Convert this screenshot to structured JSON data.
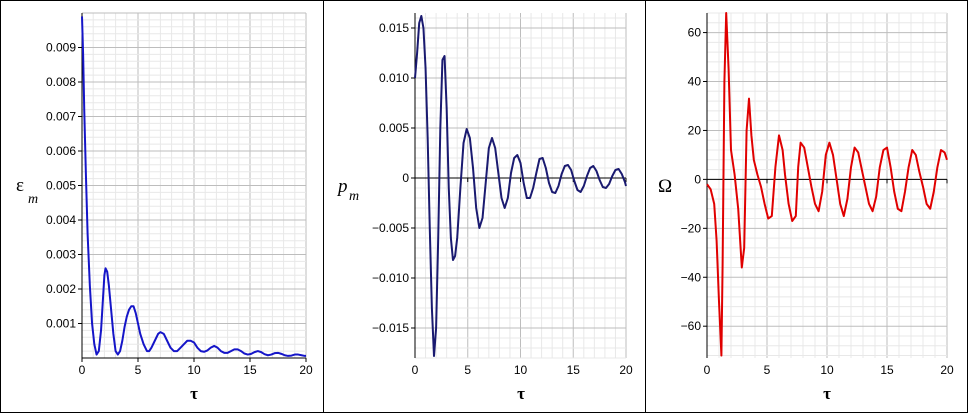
{
  "chart_data": [
    {
      "type": "line",
      "ylabel": "ε",
      "ylabel_subscript": "m",
      "xlabel": "τ",
      "xlim": [
        0,
        20
      ],
      "ylim": [
        0,
        0.01
      ],
      "xticks": [
        "0",
        "5",
        "10",
        "15",
        "20"
      ],
      "yticks": [
        "0.001",
        "0.002",
        "0.003",
        "0.004",
        "0.005",
        "0.006",
        "0.007",
        "0.008",
        "0.009"
      ],
      "grid": true,
      "color": "#1515c8",
      "series": [
        {
          "x": [
            0.0,
            0.1,
            0.2,
            0.35,
            0.5,
            0.7,
            0.9,
            1.1,
            1.3,
            1.5,
            1.7,
            1.85,
            2.0,
            2.1,
            2.25,
            2.4,
            2.6,
            2.8,
            3.0,
            3.2,
            3.4,
            3.6,
            3.8,
            4.0,
            4.2,
            4.4,
            4.6,
            4.8,
            5.0,
            5.2,
            5.5,
            5.8,
            6.0,
            6.2,
            6.5,
            6.8,
            7.0,
            7.3,
            7.6,
            7.9,
            8.2,
            8.5,
            8.8,
            9.1,
            9.4,
            9.7,
            10.0,
            10.3,
            10.6,
            10.9,
            11.2,
            11.5,
            11.8,
            12.1,
            12.4,
            12.7,
            13.0,
            13.3,
            13.6,
            13.9,
            14.2,
            14.5,
            14.8,
            15.1,
            15.4,
            15.7,
            16.0,
            16.3,
            16.6,
            16.9,
            17.2,
            17.5,
            17.8,
            18.1,
            18.4,
            18.7,
            19.0,
            19.3,
            19.6,
            19.9,
            20.0
          ],
          "y": [
            0.0099,
            0.0088,
            0.0072,
            0.0053,
            0.0036,
            0.0021,
            0.001,
            0.0004,
            0.0001,
            0.0002,
            0.0008,
            0.0016,
            0.0024,
            0.0026,
            0.0025,
            0.0021,
            0.0014,
            0.0007,
            0.0002,
            0.0001,
            0.0002,
            0.0005,
            0.0009,
            0.0012,
            0.0014,
            0.0015,
            0.0015,
            0.0013,
            0.001,
            0.0007,
            0.0004,
            0.0002,
            0.0002,
            0.0003,
            0.0005,
            0.0007,
            0.00075,
            0.0007,
            0.0005,
            0.0003,
            0.0002,
            0.0002,
            0.0003,
            0.0004,
            0.0005,
            0.0005,
            0.00045,
            0.0003,
            0.0002,
            0.00018,
            0.00022,
            0.0003,
            0.00035,
            0.0003,
            0.0002,
            0.00015,
            0.00015,
            0.0002,
            0.00025,
            0.00025,
            0.0002,
            0.00013,
            0.0001,
            0.00012,
            0.00017,
            0.0002,
            0.00017,
            0.00011,
            8e-05,
            0.0001,
            0.00014,
            0.00015,
            0.00012,
            8e-05,
            6e-05,
            7e-05,
            0.0001,
            0.0001,
            8e-05,
            6e-05,
            6e-05
          ]
        }
      ]
    },
    {
      "type": "line",
      "ylabel": "p",
      "ylabel_subscript": "m",
      "xlabel": "τ",
      "xlim": [
        0,
        20
      ],
      "ylim": [
        -0.018,
        0.0165
      ],
      "xticks": [
        "0",
        "5",
        "10",
        "15",
        "20"
      ],
      "yticks": [
        "0.015",
        "0.010",
        "0.005",
        "0",
        "−0.005",
        "−0.010",
        "−0.015"
      ],
      "grid": true,
      "color": "#1a1a70",
      "series": [
        {
          "x": [
            0.0,
            0.2,
            0.4,
            0.6,
            0.8,
            1.0,
            1.2,
            1.4,
            1.6,
            1.8,
            2.0,
            2.2,
            2.4,
            2.6,
            2.8,
            3.0,
            3.2,
            3.4,
            3.6,
            3.8,
            4.0,
            4.3,
            4.6,
            4.9,
            5.2,
            5.5,
            5.8,
            6.1,
            6.4,
            6.7,
            7.0,
            7.3,
            7.6,
            7.9,
            8.2,
            8.5,
            8.8,
            9.1,
            9.4,
            9.7,
            10.0,
            10.3,
            10.6,
            10.9,
            11.2,
            11.5,
            11.8,
            12.1,
            12.4,
            12.7,
            13.0,
            13.3,
            13.6,
            13.9,
            14.2,
            14.5,
            14.8,
            15.1,
            15.4,
            15.7,
            16.0,
            16.3,
            16.6,
            16.9,
            17.2,
            17.5,
            17.8,
            18.1,
            18.4,
            18.7,
            19.0,
            19.3,
            19.6,
            19.9,
            20.0
          ],
          "y": [
            0.01,
            0.0125,
            0.0155,
            0.0162,
            0.015,
            0.011,
            0.004,
            -0.005,
            -0.013,
            -0.0178,
            -0.015,
            -0.006,
            0.005,
            0.0118,
            0.0122,
            0.007,
            -0.001,
            -0.006,
            -0.0082,
            -0.0078,
            -0.006,
            -0.001,
            0.0035,
            0.0049,
            0.004,
            0.001,
            -0.003,
            -0.005,
            -0.004,
            -0.0005,
            0.003,
            0.004,
            0.003,
            0.0005,
            -0.002,
            -0.003,
            -0.002,
            0.0005,
            0.002,
            0.0023,
            0.0015,
            -0.0005,
            -0.002,
            -0.002,
            -0.001,
            0.0005,
            0.0019,
            0.002,
            0.001,
            -0.0005,
            -0.0014,
            -0.0015,
            -0.0008,
            0.0004,
            0.0012,
            0.0013,
            0.0008,
            -0.0003,
            -0.0012,
            -0.0014,
            -0.0008,
            0.0002,
            0.001,
            0.0012,
            0.0007,
            -0.0002,
            -0.0009,
            -0.001,
            -0.0006,
            0.0002,
            0.0008,
            0.0009,
            0.0004,
            -0.0004,
            -0.0008
          ]
        }
      ]
    },
    {
      "type": "line",
      "ylabel": "Ω",
      "ylabel_subscript": "",
      "xlabel": "τ",
      "xlim": [
        0,
        20
      ],
      "ylim": [
        -73,
        68
      ],
      "xticks": [
        "0",
        "5",
        "10",
        "15",
        "20"
      ],
      "yticks": [
        "60",
        "40",
        "20",
        "0",
        "−20",
        "−40",
        "−60"
      ],
      "grid": true,
      "color": "#e00000",
      "series": [
        {
          "x": [
            0.0,
            0.3,
            0.6,
            0.8,
            1.0,
            1.2,
            1.3,
            1.45,
            1.6,
            1.8,
            2.0,
            2.3,
            2.6,
            2.9,
            3.1,
            3.3,
            3.5,
            3.7,
            3.9,
            4.2,
            4.5,
            4.8,
            5.1,
            5.4,
            5.7,
            6.0,
            6.3,
            6.5,
            6.8,
            7.1,
            7.4,
            7.6,
            7.8,
            8.1,
            8.4,
            8.7,
            9.0,
            9.3,
            9.6,
            9.9,
            10.2,
            10.5,
            10.8,
            11.1,
            11.4,
            11.7,
            12.0,
            12.3,
            12.6,
            12.9,
            13.2,
            13.5,
            13.8,
            14.1,
            14.4,
            14.7,
            15.0,
            15.3,
            15.6,
            15.9,
            16.2,
            16.5,
            16.8,
            17.1,
            17.4,
            17.7,
            18.0,
            18.3,
            18.6,
            18.9,
            19.2,
            19.5,
            19.8,
            20.0
          ],
          "y": [
            -2,
            -4,
            -10,
            -25,
            -50,
            -72,
            -35,
            40,
            68,
            45,
            12,
            2,
            -12,
            -36,
            -28,
            20,
            33,
            18,
            8,
            2,
            -3,
            -10,
            -16,
            -15,
            5,
            18,
            12,
            2,
            -10,
            -17,
            -15,
            5,
            15,
            13,
            5,
            -3,
            -10,
            -13,
            -5,
            10,
            15,
            10,
            0,
            -10,
            -15,
            -8,
            5,
            13,
            11,
            4,
            -3,
            -10,
            -13,
            -7,
            5,
            12,
            13,
            5,
            -5,
            -12,
            -13,
            -5,
            5,
            12,
            10,
            3,
            -3,
            -10,
            -12,
            -5,
            5,
            12,
            11,
            8
          ]
        }
      ]
    }
  ]
}
